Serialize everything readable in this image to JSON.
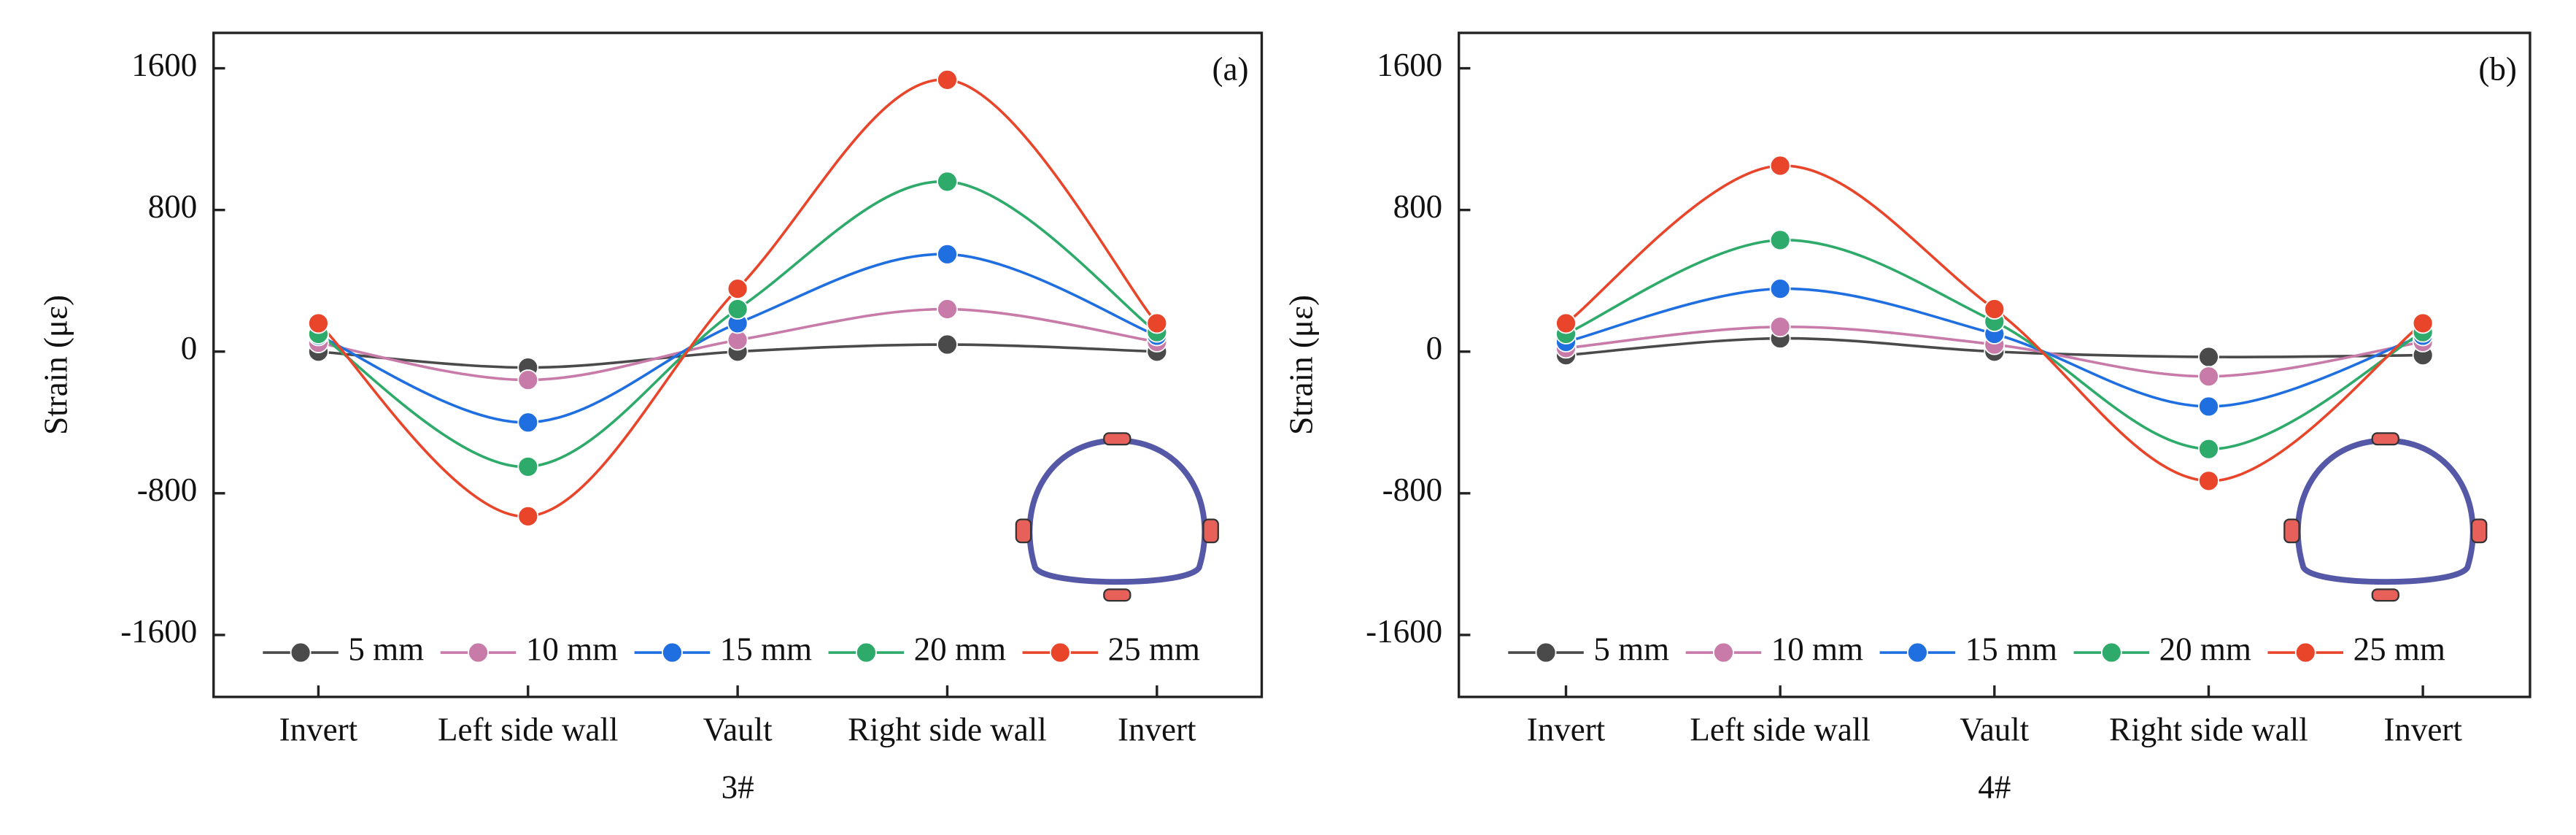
{
  "chart_data": [
    {
      "type": "line",
      "panel_label": "(a)",
      "xlabel": "3#",
      "ylabel": "Strain  (με)",
      "categories": [
        "Invert",
        "Left side wall",
        "Vault",
        "Right side wall",
        "Invert"
      ],
      "ylim": [
        -1950,
        1800
      ],
      "yticks": [
        -1600,
        -800,
        0,
        800,
        1600
      ],
      "series": [
        {
          "name": "5 mm",
          "color": "#4a4a4a",
          "values": [
            0,
            -90,
            0,
            40,
            0
          ]
        },
        {
          "name": "10 mm",
          "color": "#c87aa8",
          "values": [
            50,
            -160,
            65,
            240,
            55
          ]
        },
        {
          "name": "15 mm",
          "color": "#1f6fe0",
          "values": [
            90,
            -400,
            160,
            550,
            90
          ]
        },
        {
          "name": "20 mm",
          "color": "#2eaa6a",
          "values": [
            100,
            -650,
            240,
            960,
            110
          ]
        },
        {
          "name": "25 mm",
          "color": "#e8452b",
          "values": [
            160,
            -930,
            355,
            1535,
            160
          ]
        }
      ]
    },
    {
      "type": "line",
      "panel_label": "(b)",
      "xlabel": "4#",
      "ylabel": "Strain  (με)",
      "categories": [
        "Invert",
        "Left side wall",
        "Vault",
        "Right side wall",
        "Invert"
      ],
      "ylim": [
        -1950,
        1800
      ],
      "yticks": [
        -1600,
        -800,
        0,
        800,
        1600
      ],
      "series": [
        {
          "name": "5 mm",
          "color": "#4a4a4a",
          "values": [
            -20,
            75,
            0,
            -30,
            -20
          ]
        },
        {
          "name": "10 mm",
          "color": "#c87aa8",
          "values": [
            20,
            140,
            40,
            -140,
            55
          ]
        },
        {
          "name": "15 mm",
          "color": "#1f6fe0",
          "values": [
            55,
            355,
            100,
            -310,
            90
          ]
        },
        {
          "name": "20 mm",
          "color": "#2eaa6a",
          "values": [
            100,
            630,
            170,
            -550,
            110
          ]
        },
        {
          "name": "25 mm",
          "color": "#e8452b",
          "values": [
            160,
            1050,
            240,
            -730,
            160
          ]
        }
      ]
    }
  ]
}
